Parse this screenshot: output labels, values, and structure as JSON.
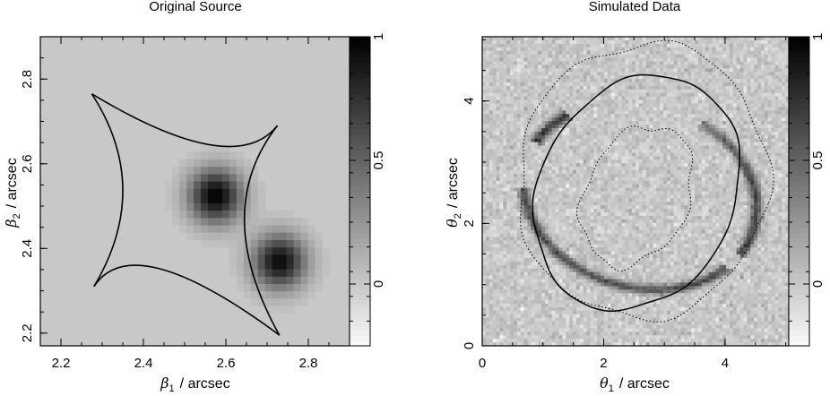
{
  "chart_data": [
    {
      "type": "heatmap",
      "title": "Original Source",
      "xlabel_symbol": "β",
      "xlabel_sub": "1",
      "xlabel_unit": "/ arcsec",
      "ylabel_symbol": "β",
      "ylabel_sub": "2",
      "ylabel_unit": "/ arcsec",
      "xlim": [
        2.15,
        2.9
      ],
      "ylim": [
        2.17,
        2.9
      ],
      "xticks": [
        2.2,
        2.4,
        2.6,
        2.8
      ],
      "xtick_labels": [
        "2.2",
        "2.4",
        "2.6",
        "2.8"
      ],
      "yticks": [
        2.2,
        2.4,
        2.6,
        2.8
      ],
      "ytick_labels": [
        "2.2",
        "2.4",
        "2.6",
        "2.8"
      ],
      "colorbar": {
        "range": [
          -0.25,
          1.0
        ],
        "ticks": [
          0,
          0.5,
          1
        ],
        "tick_labels": [
          "0",
          "0.5",
          "1"
        ],
        "colormap": "grayscale (white=low, black=high)"
      },
      "background_level": 0.0,
      "sources": [
        {
          "x": 2.575,
          "y": 2.525,
          "peak": 1.0,
          "sigma": 0.045
        },
        {
          "x": 2.73,
          "y": 2.37,
          "peak": 0.95,
          "sigma": 0.045
        }
      ],
      "caustic": {
        "cusps": [
          [
            2.275,
            2.765
          ],
          [
            2.725,
            2.69
          ],
          [
            2.73,
            2.195
          ],
          [
            2.28,
            2.31
          ]
        ],
        "edges": [
          {
            "from": 0,
            "to": 1,
            "mid": [
              2.56,
              2.645
            ]
          },
          {
            "from": 1,
            "to": 2,
            "mid": [
              2.645,
              2.465
            ]
          },
          {
            "from": 2,
            "to": 3,
            "mid": [
              2.44,
              2.352
            ]
          },
          {
            "from": 3,
            "to": 0,
            "mid": [
              2.35,
              2.54
            ]
          }
        ]
      }
    },
    {
      "type": "heatmap",
      "title": "Simulated Data",
      "xlabel_symbol": "θ",
      "xlabel_sub": "1",
      "xlabel_unit": "/ arcsec",
      "ylabel_symbol": "θ",
      "ylabel_sub": "2",
      "ylabel_unit": "/ arcsec",
      "xlim": [
        0,
        5.05
      ],
      "ylim": [
        0,
        5.05
      ],
      "xticks": [
        0,
        2,
        4
      ],
      "xtick_labels": [
        "0",
        "2",
        "4"
      ],
      "yticks": [
        0,
        2,
        4
      ],
      "ytick_labels": [
        "0",
        "2",
        "4"
      ],
      "colorbar": {
        "range": [
          -0.25,
          1.0
        ],
        "ticks": [
          0,
          0.5,
          1
        ],
        "tick_labels": [
          "0",
          "0.5",
          "1"
        ],
        "colormap": "grayscale (white=low, black=high)"
      },
      "noise": "pixel noise, dim 88 x 88",
      "critical_curve": {
        "style": "solid",
        "center": [
          2.55,
          2.5
        ],
        "radius_x": 1.6,
        "radius_y": 2.0,
        "rotation_deg": -28
      },
      "mask_outer": {
        "style": "dotted",
        "center": [
          2.65,
          2.7
        ],
        "radius_x": 2.05,
        "radius_y": 2.25,
        "rotation_deg": -10
      },
      "mask_inner": {
        "style": "dotted",
        "center": [
          2.55,
          2.45
        ],
        "radius_x": 0.85,
        "radius_y": 1.2,
        "rotation_deg": -25
      },
      "arcs": [
        {
          "center": [
            2.6,
            2.45
          ],
          "rx": 1.95,
          "ry": 1.5,
          "rotation_deg": -15,
          "from_deg": 195,
          "to_deg": 330,
          "strength": 0.6
        },
        {
          "center": [
            2.6,
            2.45
          ],
          "rx": 1.95,
          "ry": 1.5,
          "rotation_deg": -15,
          "from_deg": -20,
          "to_deg": 40,
          "strength": 0.65
        },
        {
          "center": [
            2.6,
            2.45
          ],
          "rx": 1.95,
          "ry": 1.5,
          "rotation_deg": -15,
          "from_deg": 40,
          "to_deg": 70,
          "strength": 0.5
        },
        {
          "center": [
            2.6,
            2.45
          ],
          "rx": 1.95,
          "ry": 1.5,
          "rotation_deg": -15,
          "from_deg": 140,
          "to_deg": 165,
          "strength": 0.7
        }
      ]
    }
  ]
}
